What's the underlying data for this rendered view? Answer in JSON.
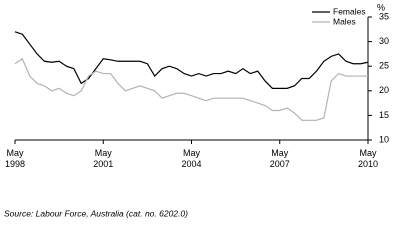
{
  "chart_data": {
    "type": "line",
    "y_label": "%",
    "source": "Source: Labour Force, Australia (cat. no. 6202.0)",
    "x": [
      "1998-05",
      "1998-08",
      "1998-11",
      "1999-02",
      "1999-05",
      "1999-08",
      "1999-11",
      "2000-02",
      "2000-05",
      "2000-08",
      "2000-11",
      "2001-02",
      "2001-05",
      "2001-08",
      "2001-11",
      "2002-02",
      "2002-05",
      "2002-08",
      "2002-11",
      "2003-02",
      "2003-05",
      "2003-08",
      "2003-11",
      "2004-02",
      "2004-05",
      "2004-08",
      "2004-11",
      "2005-02",
      "2005-05",
      "2005-08",
      "2005-11",
      "2006-02",
      "2006-05",
      "2006-08",
      "2006-11",
      "2007-02",
      "2007-05",
      "2007-08",
      "2007-11",
      "2008-02",
      "2008-05",
      "2008-08",
      "2008-11",
      "2009-02",
      "2009-05",
      "2009-08",
      "2009-11",
      "2010-02",
      "2010-05"
    ],
    "series": [
      {
        "name": "Females",
        "color": "#000000",
        "values": [
          32,
          31.5,
          29.5,
          27.5,
          26,
          25.8,
          26,
          25,
          24.5,
          21.5,
          22.5,
          24.5,
          26.5,
          26.3,
          26,
          26,
          26,
          26,
          25.5,
          23,
          24.5,
          25,
          24.5,
          23.5,
          23,
          23.5,
          23,
          23.5,
          23.5,
          24,
          23.5,
          24.5,
          23.5,
          24,
          22,
          20.5,
          20.5,
          20.5,
          21,
          22.5,
          22.5,
          24,
          26,
          27,
          27.5,
          26,
          25.5,
          25.5,
          25.8
        ]
      },
      {
        "name": "Males",
        "color": "#b3b3b3",
        "values": [
          25.5,
          26.5,
          23,
          21.5,
          21,
          20,
          20.5,
          19.5,
          19,
          20,
          23,
          24,
          23.5,
          23.5,
          21.5,
          20,
          20.5,
          21,
          20.5,
          20,
          18.5,
          19,
          19.5,
          19.5,
          19,
          18.5,
          18,
          18.5,
          18.5,
          18.5,
          18.5,
          18.5,
          18,
          17.5,
          17,
          16,
          16,
          16.5,
          15.5,
          14,
          14,
          14,
          14.5,
          22,
          23.5,
          23,
          23,
          23,
          23
        ]
      }
    ],
    "xlim": [
      "1998-05",
      "2010-05"
    ],
    "xticks": [
      {
        "value": "1998-05",
        "label": "May\n1998"
      },
      {
        "value": "2001-05",
        "label": "May\n2001"
      },
      {
        "value": "2004-05",
        "label": "May\n2004"
      },
      {
        "value": "2007-05",
        "label": "May\n2007"
      },
      {
        "value": "2010-05",
        "label": "May\n2010"
      }
    ],
    "ylim": [
      10,
      35
    ],
    "yticks": [
      10,
      15,
      20,
      25,
      30,
      35
    ],
    "legend": "top-right"
  }
}
